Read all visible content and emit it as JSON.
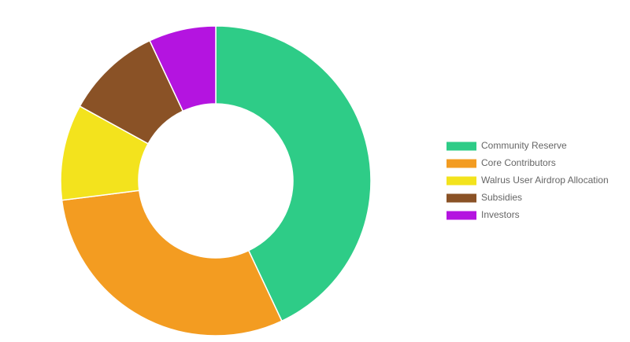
{
  "chart_data": {
    "type": "doughnut",
    "categories": [
      "Community Reserve",
      "Core Contributors",
      "Walrus User Airdrop Allocation",
      "Subsidies",
      "Investors"
    ],
    "values": [
      43,
      30,
      10,
      10,
      7
    ],
    "colors": [
      "#2ecc87",
      "#f39c21",
      "#f3e31d",
      "#8a5226",
      "#b414e0"
    ],
    "legend": "right"
  }
}
